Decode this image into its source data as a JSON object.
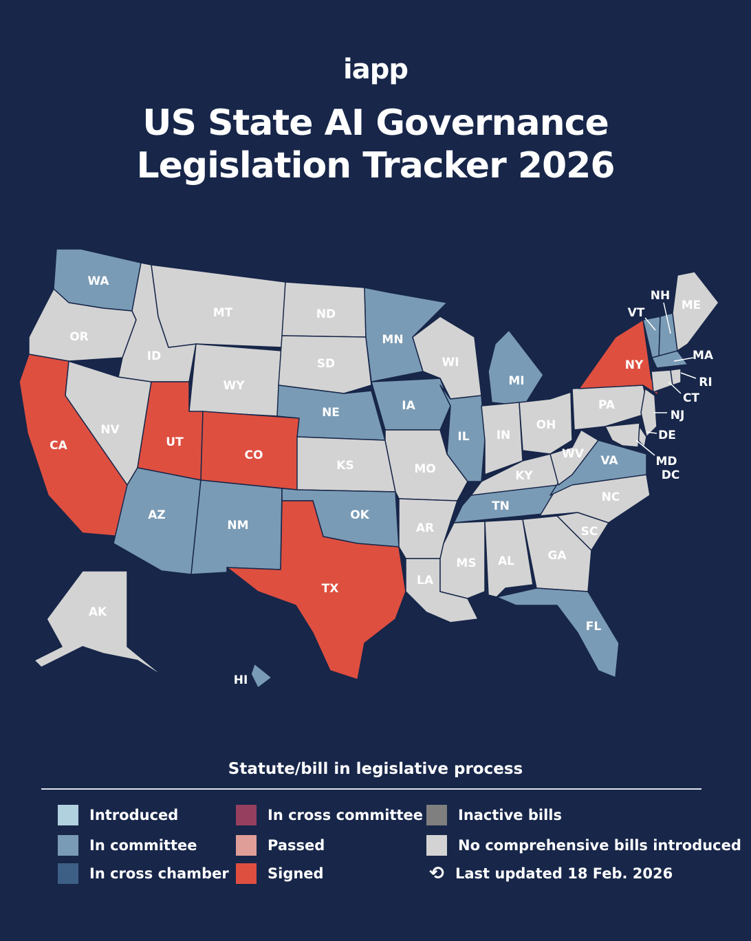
{
  "logo": "iapp",
  "title_line1": "US State AI Governance",
  "title_line2": "Legislation Tracker 2026",
  "legend": {
    "title": "Statute/bill in legislative process",
    "items": [
      {
        "label": "Introduced",
        "color": "#b1d1de"
      },
      {
        "label": "In committee",
        "color": "#7a9bb5"
      },
      {
        "label": "In cross chamber",
        "color": "#3e5f85"
      },
      {
        "label": "In cross committee",
        "color": "#963f5f"
      },
      {
        "label": "Passed",
        "color": "#e09e98"
      },
      {
        "label": "Signed",
        "color": "#de4f40"
      },
      {
        "label": "Inactive bills",
        "color": "#7f7f7f"
      },
      {
        "label": "No comprehensive bills introduced",
        "color": "#d3d3d3"
      }
    ],
    "updated_icon": "refresh-icon",
    "updated": "Last updated 18 Feb. 2026"
  },
  "states": {
    "WA": "In committee",
    "OR": "No comprehensive bills introduced",
    "CA": "Signed",
    "NV": "No comprehensive bills introduced",
    "ID": "No comprehensive bills introduced",
    "MT": "No comprehensive bills introduced",
    "WY": "No comprehensive bills introduced",
    "UT": "Signed",
    "CO": "Signed",
    "AZ": "In committee",
    "NM": "In committee",
    "ND": "No comprehensive bills introduced",
    "SD": "No comprehensive bills introduced",
    "NE": "In committee",
    "KS": "No comprehensive bills introduced",
    "OK": "In committee",
    "TX": "Signed",
    "MN": "In committee",
    "IA": "In committee",
    "MO": "No comprehensive bills introduced",
    "AR": "No comprehensive bills introduced",
    "LA": "No comprehensive bills introduced",
    "WI": "No comprehensive bills introduced",
    "IL": "In committee",
    "MI": "In committee",
    "IN": "No comprehensive bills introduced",
    "OH": "No comprehensive bills introduced",
    "KY": "No comprehensive bills introduced",
    "TN": "In committee",
    "MS": "No comprehensive bills introduced",
    "AL": "No comprehensive bills introduced",
    "GA": "No comprehensive bills introduced",
    "FL": "In committee",
    "SC": "No comprehensive bills introduced",
    "NC": "No comprehensive bills introduced",
    "VA": "In committee",
    "WV": "No comprehensive bills introduced",
    "PA": "No comprehensive bills introduced",
    "NY": "Signed",
    "VT": "In committee",
    "NH": "In committee",
    "ME": "No comprehensive bills introduced",
    "MA": "In committee",
    "RI": "No comprehensive bills introduced",
    "CT": "No comprehensive bills introduced",
    "NJ": "No comprehensive bills introduced",
    "DE": "No comprehensive bills introduced",
    "MD": "No comprehensive bills introduced",
    "DC": "No comprehensive bills introduced",
    "AK": "No comprehensive bills introduced",
    "HI": "In committee"
  }
}
